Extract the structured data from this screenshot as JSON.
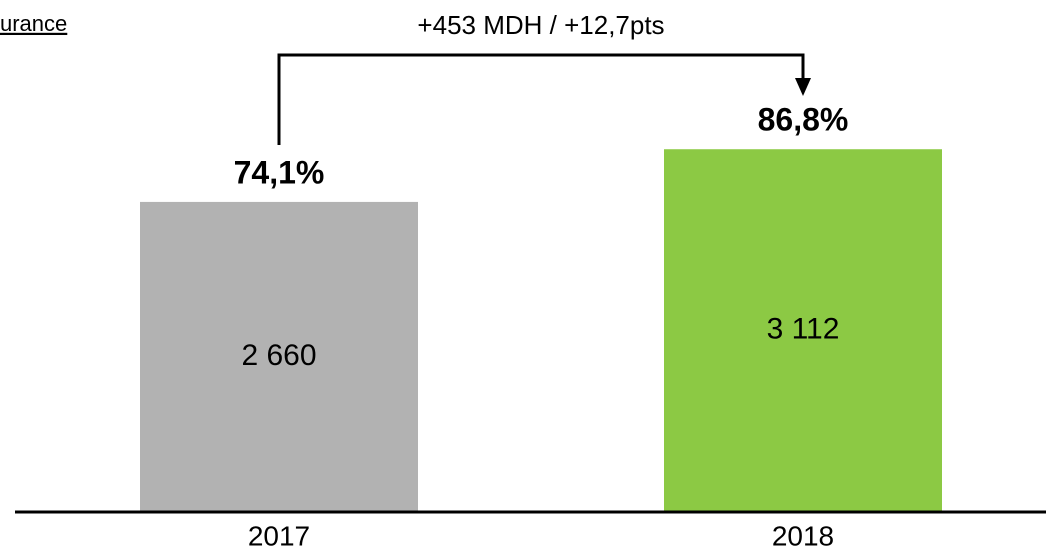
{
  "corner_label": "urance",
  "chart_data": {
    "type": "bar",
    "annotation": "+453 MDH / +12,7pts",
    "categories": [
      "2017",
      "2018"
    ],
    "series": [
      {
        "name": null,
        "colors": [
          "#b2b2b2",
          "#8cc944"
        ],
        "values": [
          2660,
          3112
        ],
        "value_labels": [
          "2 660",
          "3 112"
        ]
      }
    ],
    "rates": [
      74.1,
      86.8
    ],
    "rate_labels": [
      "74,1%",
      "86,8%"
    ],
    "ylim": [
      0,
      3500
    ]
  }
}
